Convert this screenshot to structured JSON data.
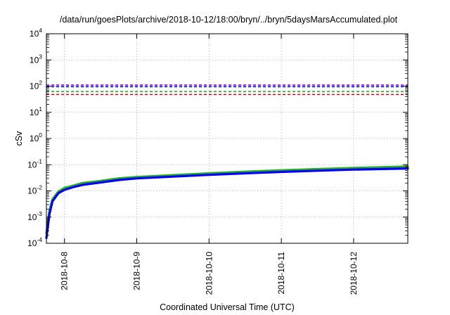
{
  "chart_data": {
    "type": "line",
    "title": "/data/run/goesPlots/archive/2018-10-12/18:00/bryn/../bryn/5daysMarsAccumulated.plot",
    "xlabel": "Coordinated Universal Time (UTC)",
    "ylabel": "cSv",
    "yscale": "log",
    "ylim": [
      0.0001,
      10000
    ],
    "xlim": [
      "2018-10-07 18:00",
      "2018-10-12 18:00"
    ],
    "grid": true,
    "x_ticks": [
      "2018-10-8",
      "2018-10-9",
      "2018-10-10",
      "2018-10-11",
      "2018-10-12"
    ],
    "y_ticks": [
      {
        "base": "10",
        "exp": "-4"
      },
      {
        "base": "10",
        "exp": "-3"
      },
      {
        "base": "10",
        "exp": "-2"
      },
      {
        "base": "10",
        "exp": "-1"
      },
      {
        "base": "10",
        "exp": "0"
      },
      {
        "base": "10",
        "exp": "1"
      },
      {
        "base": "10",
        "exp": "2"
      },
      {
        "base": "10",
        "exp": "3"
      },
      {
        "base": "10",
        "exp": "4"
      }
    ],
    "reference_lines": [
      {
        "y": 110,
        "color": "#9400d3",
        "style": "dashed"
      },
      {
        "y": 95,
        "color": "#0000ff",
        "style": "dashed"
      },
      {
        "y": 62,
        "color": "#22b022",
        "style": "dashed"
      },
      {
        "y": 48,
        "color": "#e00000",
        "style": "dashed"
      }
    ],
    "series": [
      {
        "color": "#22b022",
        "x": [
          "2018-10-07 18:00",
          "2018-10-07 19:00",
          "2018-10-07 20:00",
          "2018-10-07 22:00",
          "2018-10-08 00:00",
          "2018-10-08 03:00",
          "2018-10-08 06:00",
          "2018-10-08 12:00",
          "2018-10-08 18:00",
          "2018-10-09 00:00",
          "2018-10-09 12:00",
          "2018-10-10 00:00",
          "2018-10-10 12:00",
          "2018-10-11 00:00",
          "2018-10-11 12:00",
          "2018-10-12 00:00",
          "2018-10-12 18:00"
        ],
        "y": [
          0.00025,
          0.0017,
          0.0048,
          0.0095,
          0.013,
          0.016,
          0.02,
          0.024,
          0.03,
          0.034,
          0.04,
          0.047,
          0.054,
          0.061,
          0.068,
          0.075,
          0.085
        ]
      },
      {
        "color": "#0000ff",
        "x": [
          "2018-10-07 18:00",
          "2018-10-07 19:00",
          "2018-10-07 20:00",
          "2018-10-07 22:00",
          "2018-10-08 00:00",
          "2018-10-08 03:00",
          "2018-10-08 06:00",
          "2018-10-08 12:00",
          "2018-10-08 18:00",
          "2018-10-09 00:00",
          "2018-10-09 12:00",
          "2018-10-10 00:00",
          "2018-10-10 12:00",
          "2018-10-11 00:00",
          "2018-10-11 12:00",
          "2018-10-12 00:00",
          "2018-10-12 18:00"
        ],
        "y": [
          0.00016,
          0.0013,
          0.004,
          0.0082,
          0.011,
          0.014,
          0.017,
          0.021,
          0.026,
          0.03,
          0.035,
          0.041,
          0.047,
          0.053,
          0.059,
          0.065,
          0.072
        ]
      }
    ]
  }
}
